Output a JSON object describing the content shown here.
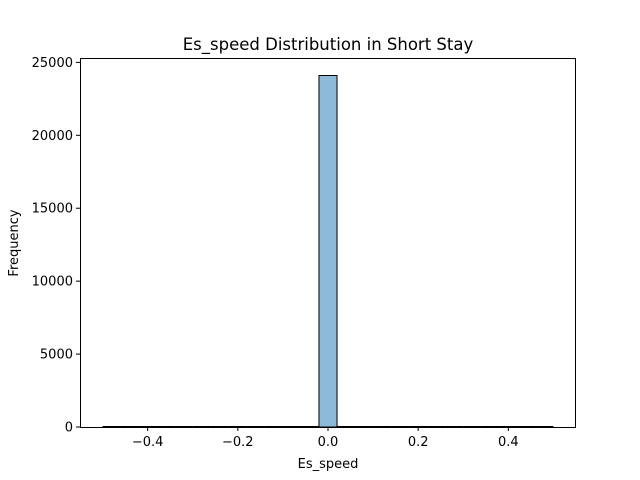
{
  "chart_data": {
    "type": "bar",
    "title": "Es_speed Distribution in Short Stay",
    "xlabel": "Es_speed",
    "ylabel": "Frequency",
    "xlim": [
      -0.55,
      0.55
    ],
    "ylim": [
      0,
      25300
    ],
    "grid": false,
    "bar_color": "#8dbad9",
    "edge_color": "#000000",
    "bins": [
      {
        "x0": -0.5,
        "x1": -0.46,
        "count": 0
      },
      {
        "x0": -0.46,
        "x1": -0.42,
        "count": 0
      },
      {
        "x0": -0.42,
        "x1": -0.38,
        "count": 0
      },
      {
        "x0": -0.38,
        "x1": -0.34,
        "count": 0
      },
      {
        "x0": -0.34,
        "x1": -0.3,
        "count": 0
      },
      {
        "x0": -0.3,
        "x1": -0.26,
        "count": 0
      },
      {
        "x0": -0.26,
        "x1": -0.22,
        "count": 0
      },
      {
        "x0": -0.22,
        "x1": -0.18,
        "count": 0
      },
      {
        "x0": -0.18,
        "x1": -0.14,
        "count": 0
      },
      {
        "x0": -0.14,
        "x1": -0.1,
        "count": 0
      },
      {
        "x0": -0.1,
        "x1": -0.06,
        "count": 0
      },
      {
        "x0": -0.06,
        "x1": -0.02,
        "count": 0
      },
      {
        "x0": -0.02,
        "x1": 0.02,
        "count": 24100
      },
      {
        "x0": 0.02,
        "x1": 0.06,
        "count": 0
      },
      {
        "x0": 0.06,
        "x1": 0.1,
        "count": 0
      },
      {
        "x0": 0.1,
        "x1": 0.14,
        "count": 0
      },
      {
        "x0": 0.14,
        "x1": 0.18,
        "count": 0
      },
      {
        "x0": 0.18,
        "x1": 0.22,
        "count": 0
      },
      {
        "x0": 0.22,
        "x1": 0.26,
        "count": 0
      },
      {
        "x0": 0.26,
        "x1": 0.3,
        "count": 0
      },
      {
        "x0": 0.3,
        "x1": 0.34,
        "count": 0
      },
      {
        "x0": 0.34,
        "x1": 0.38,
        "count": 0
      },
      {
        "x0": 0.38,
        "x1": 0.42,
        "count": 0
      },
      {
        "x0": 0.42,
        "x1": 0.46,
        "count": 0
      },
      {
        "x0": 0.46,
        "x1": 0.5,
        "count": 0
      }
    ],
    "x_ticks": [
      {
        "value": -0.4,
        "label": "−0.4"
      },
      {
        "value": -0.2,
        "label": "−0.2"
      },
      {
        "value": 0.0,
        "label": "0.0"
      },
      {
        "value": 0.2,
        "label": "0.2"
      },
      {
        "value": 0.4,
        "label": "0.4"
      }
    ],
    "y_ticks": [
      {
        "value": 0,
        "label": "0"
      },
      {
        "value": 5000,
        "label": "5000"
      },
      {
        "value": 10000,
        "label": "10000"
      },
      {
        "value": 15000,
        "label": "15000"
      },
      {
        "value": 20000,
        "label": "20000"
      },
      {
        "value": 25000,
        "label": "25000"
      }
    ]
  }
}
